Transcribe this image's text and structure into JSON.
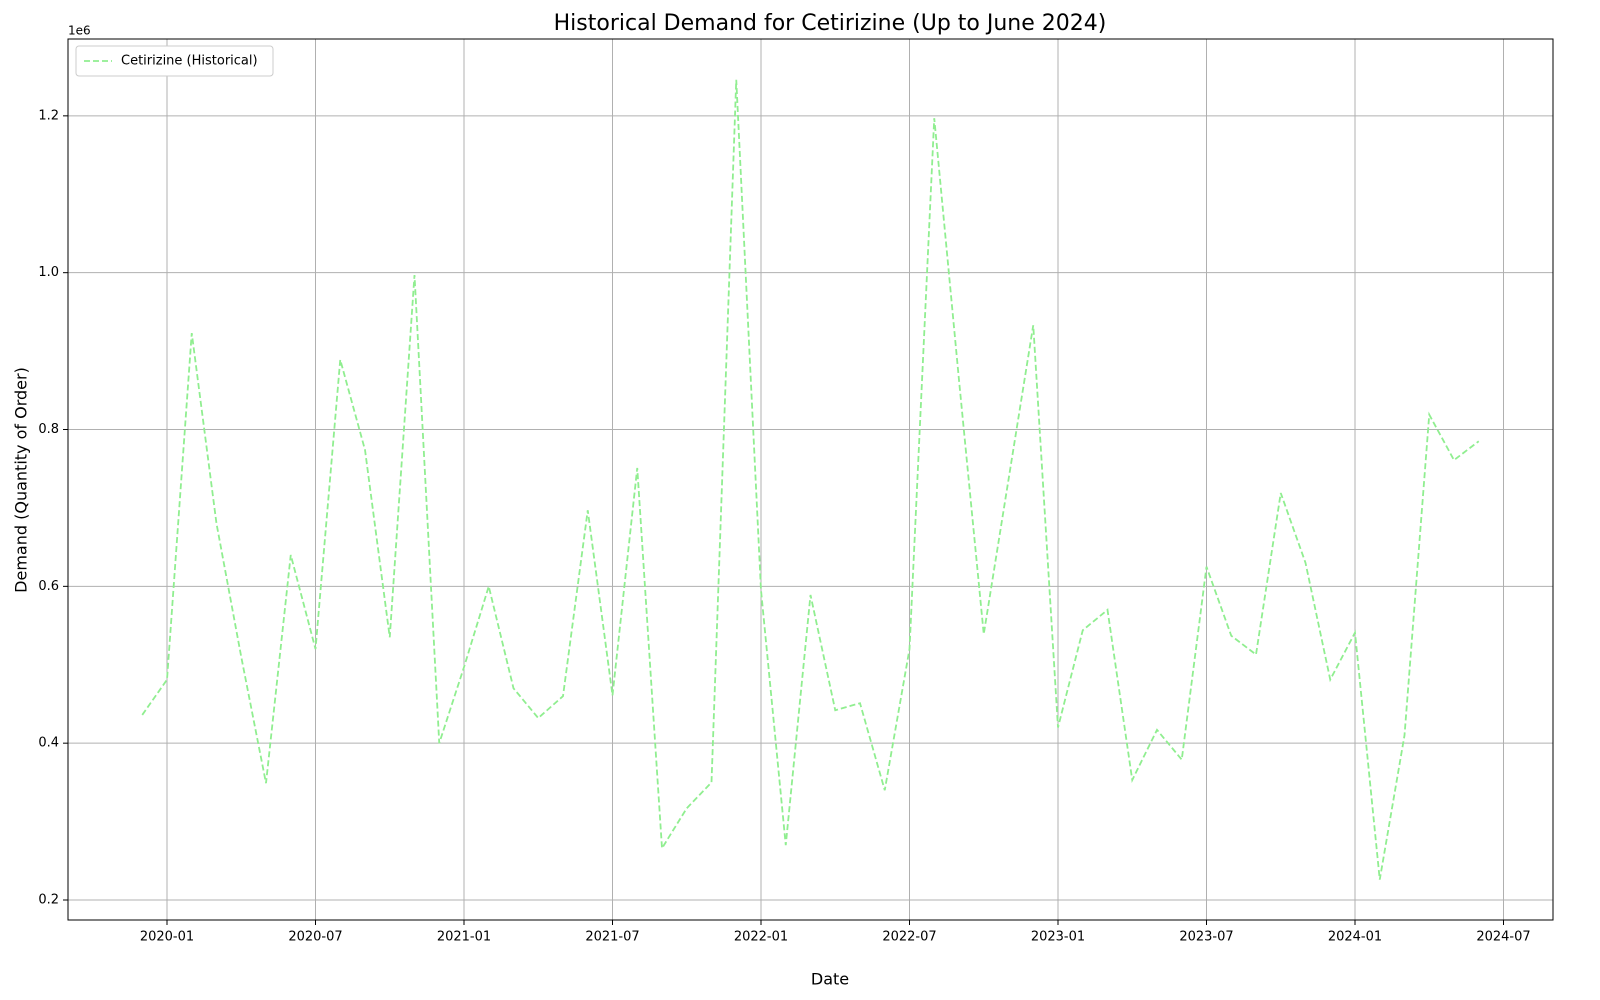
{
  "chart_data": {
    "type": "line",
    "title": "Historical Demand for Cetirizine (Up to June 2024)",
    "xlabel": "Date",
    "ylabel": "Demand (Quantity of Order)",
    "y_offset_label": "1e6",
    "x": [
      "2019-12",
      "2020-01",
      "2020-02",
      "2020-03",
      "2020-04",
      "2020-05",
      "2020-06",
      "2020-07",
      "2020-08",
      "2020-09",
      "2020-10",
      "2020-11",
      "2020-12",
      "2021-01",
      "2021-02",
      "2021-03",
      "2021-04",
      "2021-05",
      "2021-06",
      "2021-07",
      "2021-08",
      "2021-09",
      "2021-10",
      "2021-11",
      "2021-12",
      "2022-01",
      "2022-02",
      "2022-03",
      "2022-04",
      "2022-05",
      "2022-06",
      "2022-07",
      "2022-08",
      "2022-09",
      "2022-10",
      "2022-11",
      "2022-12",
      "2023-01",
      "2023-02",
      "2023-03",
      "2023-04",
      "2023-05",
      "2023-06",
      "2023-07",
      "2023-08",
      "2023-09",
      "2023-10",
      "2023-11",
      "2023-12",
      "2024-01",
      "2024-02",
      "2024-03",
      "2024-04",
      "2024-05",
      "2024-06"
    ],
    "series": [
      {
        "name": "Cetirizine (Historical)",
        "color": "#90ee90",
        "linestyle": "dashed",
        "values": [
          0.436,
          0.481,
          0.923,
          0.68,
          0.51,
          0.349,
          0.64,
          0.52,
          0.889,
          0.774,
          0.535,
          0.997,
          0.4,
          0.497,
          0.6,
          0.47,
          0.432,
          0.46,
          0.697,
          0.461,
          0.751,
          0.266,
          0.317,
          0.35,
          1.246,
          0.595,
          0.27,
          0.589,
          0.442,
          0.451,
          0.34,
          0.52,
          1.197,
          0.863,
          0.539,
          0.736,
          0.933,
          0.42,
          0.544,
          0.57,
          0.353,
          0.417,
          0.379,
          0.625,
          0.537,
          0.513,
          0.719,
          0.63,
          0.481,
          0.541,
          0.226,
          0.41,
          0.819,
          0.761,
          0.785
        ]
      }
    ],
    "xlim": [
      "2019-09",
      "2024-09"
    ],
    "xticks": [
      "2020-01",
      "2020-07",
      "2021-01",
      "2021-07",
      "2022-01",
      "2022-07",
      "2023-01",
      "2023-07",
      "2024-01",
      "2024-07"
    ],
    "ylim": [
      0.1745,
      1.298
    ],
    "yticks": [
      0.2,
      0.4,
      0.6,
      0.8,
      {
        "value": 1,
        "label": "1.0"
      },
      1.2
    ],
    "grid": true,
    "legend": "upper left"
  }
}
